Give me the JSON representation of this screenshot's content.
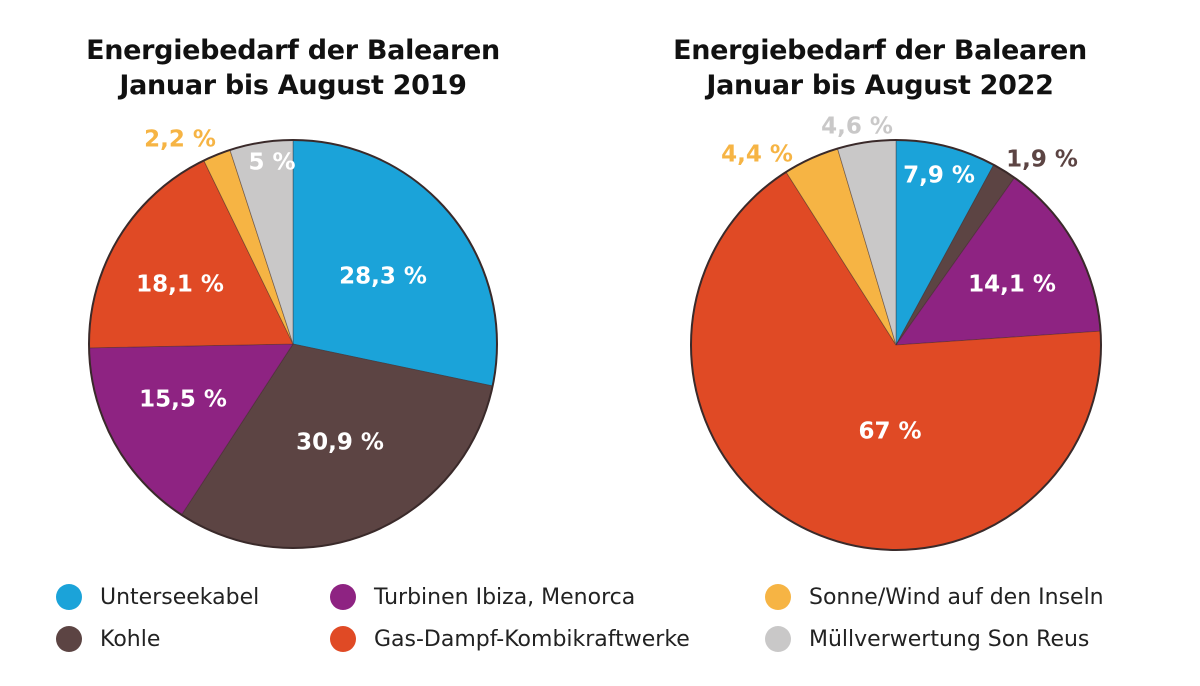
{
  "colors": {
    "Unterseekabel": "#1ba3d9",
    "Kohle": "#5c4443",
    "Turbinen Ibiza, Menorca": "#8e2382",
    "Gas-Dampf-Kombikraftwerke": "#e04a25",
    "Sonne/Wind auf den Inseln": "#f6b444",
    "Müllverwertung Son Reus": "#c9c8c8"
  },
  "chart_data": [
    {
      "type": "pie",
      "title": "Energiebedarf der Balearen\nJanuar bis August 2019",
      "title_lines": [
        "Energiebedarf der Balearen",
        "Januar bis August 2019"
      ],
      "categories": [
        "Unterseekabel",
        "Kohle",
        "Turbinen Ibiza, Menorca",
        "Gas-Dampf-Kombikraftwerke",
        "Sonne/Wind auf den Inseln",
        "Müllverwertung Son Reus"
      ],
      "values": [
        28.3,
        30.9,
        15.5,
        18.1,
        2.2,
        5
      ],
      "labels": [
        "28,3 %",
        "30,9 %",
        "15,5 %",
        "18,1 %",
        "2,2 %",
        "5 %"
      ],
      "start": "12 o'clock, clockwise"
    },
    {
      "type": "pie",
      "title": "Energiebedarf der Balearen\nJanuar bis August 2022",
      "title_lines": [
        "Energiebedarf der Balearen",
        "Januar bis August 2022"
      ],
      "categories": [
        "Unterseekabel",
        "Kohle",
        "Turbinen Ibiza, Menorca",
        "Gas-Dampf-Kombikraftwerke",
        "Sonne/Wind auf den Inseln",
        "Müllverwertung Son Reus"
      ],
      "values": [
        7.9,
        1.9,
        14.1,
        67,
        4.4,
        4.6
      ],
      "labels": [
        "7,9 %",
        "1,9 %",
        "14,1 %",
        "67 %",
        "4,4 %",
        "4,6 %"
      ],
      "start": "12 o'clock, clockwise"
    }
  ],
  "legend": [
    {
      "label": "Unterseekabel"
    },
    {
      "label": "Kohle"
    },
    {
      "label": "Turbinen Ibiza, Menorca"
    },
    {
      "label": "Gas-Dampf-Kombikraftwerke"
    },
    {
      "label": "Sonne/Wind auf den Inseln"
    },
    {
      "label": "Müllverwertung Son Reus"
    }
  ],
  "legend_position": "bottom"
}
